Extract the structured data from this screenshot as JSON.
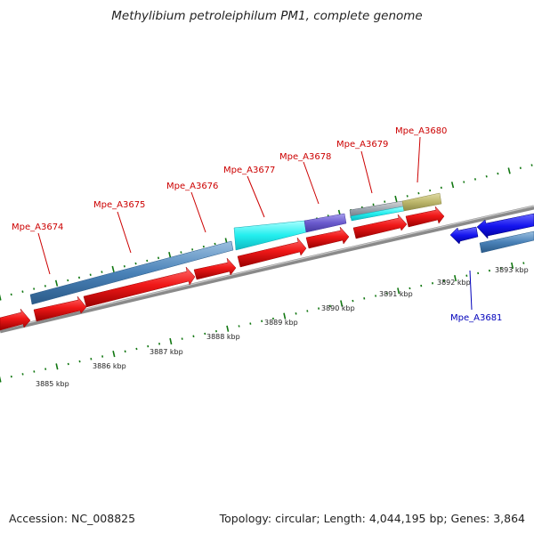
{
  "header": {
    "title": "Methylibium petroleiphilum PM1, complete genome"
  },
  "footer": {
    "accession": "Accession: NC_008825",
    "summary": "Topology: circular; Length: 4,044,195 bp; Genes: 3,864"
  },
  "colors": {
    "backbone": "#888888",
    "cds": "#ee1111",
    "cds_reverse": "#1111ee",
    "gene_label_forward": "#cc0000",
    "gene_label_reverse": "#0000bb",
    "tick": "#117711"
  },
  "kbp_labels": [
    "3885 kbp",
    "3886 kbp",
    "3887 kbp",
    "3888 kbp",
    "3889 kbp",
    "3890 kbp",
    "3891 kbp",
    "3892 kbp",
    "3893 kbp"
  ],
  "gene_labels": [
    {
      "text": "Mpe_A3674",
      "strand": "forward"
    },
    {
      "text": "Mpe_A3675",
      "strand": "forward"
    },
    {
      "text": "Mpe_A3676",
      "strand": "forward"
    },
    {
      "text": "Mpe_A3677",
      "strand": "forward"
    },
    {
      "text": "Mpe_A3678",
      "strand": "forward"
    },
    {
      "text": "Mpe_A3679",
      "strand": "forward"
    },
    {
      "text": "Mpe_A3680",
      "strand": "forward"
    },
    {
      "text": "Mpe_A3681",
      "strand": "reverse"
    }
  ]
}
